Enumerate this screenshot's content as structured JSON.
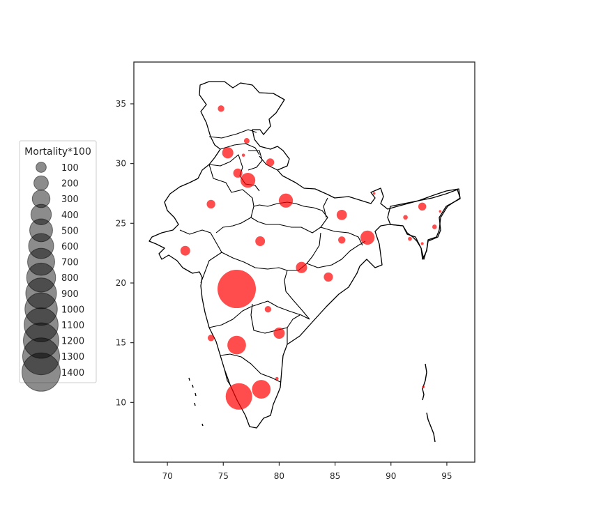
{
  "chart_data": {
    "type": "scatter",
    "title": "",
    "xlabel": "",
    "ylabel": "",
    "xlim": [
      67,
      97.5
    ],
    "ylim": [
      5,
      38.5
    ],
    "xticks": [
      70,
      75,
      80,
      85,
      90,
      95
    ],
    "yticks": [
      10,
      15,
      20,
      25,
      30,
      35
    ],
    "grid": false,
    "marker_color": "#ff0000",
    "marker_alpha": 0.7,
    "legend": {
      "title": "Mortality*100",
      "placement": "center-left outside",
      "marker_color": "#000000",
      "entries": [
        {
          "label": "100",
          "value": 100
        },
        {
          "label": "200",
          "value": 200
        },
        {
          "label": "300",
          "value": 300
        },
        {
          "label": "400",
          "value": 400
        },
        {
          "label": "500",
          "value": 500
        },
        {
          "label": "600",
          "value": 600
        },
        {
          "label": "700",
          "value": 700
        },
        {
          "label": "800",
          "value": 800
        },
        {
          "label": "900",
          "value": 900
        },
        {
          "label": "1000",
          "value": 1000
        },
        {
          "label": "1100",
          "value": 1100
        },
        {
          "label": "1200",
          "value": 1200
        },
        {
          "label": "1300",
          "value": 1300
        },
        {
          "label": "1400",
          "value": 1400
        }
      ]
    },
    "points": [
      {
        "x": 74.8,
        "y": 34.6,
        "value": 40
      },
      {
        "x": 77.1,
        "y": 31.9,
        "value": 30
      },
      {
        "x": 75.4,
        "y": 30.9,
        "value": 120
      },
      {
        "x": 76.8,
        "y": 30.7,
        "value": 10
      },
      {
        "x": 79.2,
        "y": 30.1,
        "value": 60
      },
      {
        "x": 76.3,
        "y": 29.2,
        "value": 80
      },
      {
        "x": 77.2,
        "y": 28.6,
        "value": 210
      },
      {
        "x": 73.9,
        "y": 26.6,
        "value": 70
      },
      {
        "x": 80.6,
        "y": 26.9,
        "value": 190
      },
      {
        "x": 88.5,
        "y": 27.5,
        "value": 5
      },
      {
        "x": 92.8,
        "y": 26.4,
        "value": 60
      },
      {
        "x": 94.4,
        "y": 26.0,
        "value": 5
      },
      {
        "x": 85.6,
        "y": 25.7,
        "value": 100
      },
      {
        "x": 91.3,
        "y": 25.5,
        "value": 20
      },
      {
        "x": 93.9,
        "y": 24.7,
        "value": 20
      },
      {
        "x": 85.6,
        "y": 23.6,
        "value": 50
      },
      {
        "x": 87.9,
        "y": 23.8,
        "value": 190
      },
      {
        "x": 91.7,
        "y": 23.7,
        "value": 15
      },
      {
        "x": 78.3,
        "y": 23.5,
        "value": 90
      },
      {
        "x": 92.8,
        "y": 23.3,
        "value": 8
      },
      {
        "x": 71.6,
        "y": 22.7,
        "value": 90
      },
      {
        "x": 82.0,
        "y": 21.3,
        "value": 120
      },
      {
        "x": 84.4,
        "y": 20.5,
        "value": 80
      },
      {
        "x": 76.2,
        "y": 19.5,
        "value": 1400
      },
      {
        "x": 79.0,
        "y": 17.8,
        "value": 40
      },
      {
        "x": 80.0,
        "y": 15.8,
        "value": 120
      },
      {
        "x": 73.9,
        "y": 15.4,
        "value": 40
      },
      {
        "x": 76.2,
        "y": 14.8,
        "value": 330
      },
      {
        "x": 79.8,
        "y": 12.0,
        "value": 10
      },
      {
        "x": 78.4,
        "y": 11.1,
        "value": 330
      },
      {
        "x": 76.4,
        "y": 10.5,
        "value": 670
      },
      {
        "x": 92.9,
        "y": 11.3,
        "value": 3
      }
    ]
  }
}
